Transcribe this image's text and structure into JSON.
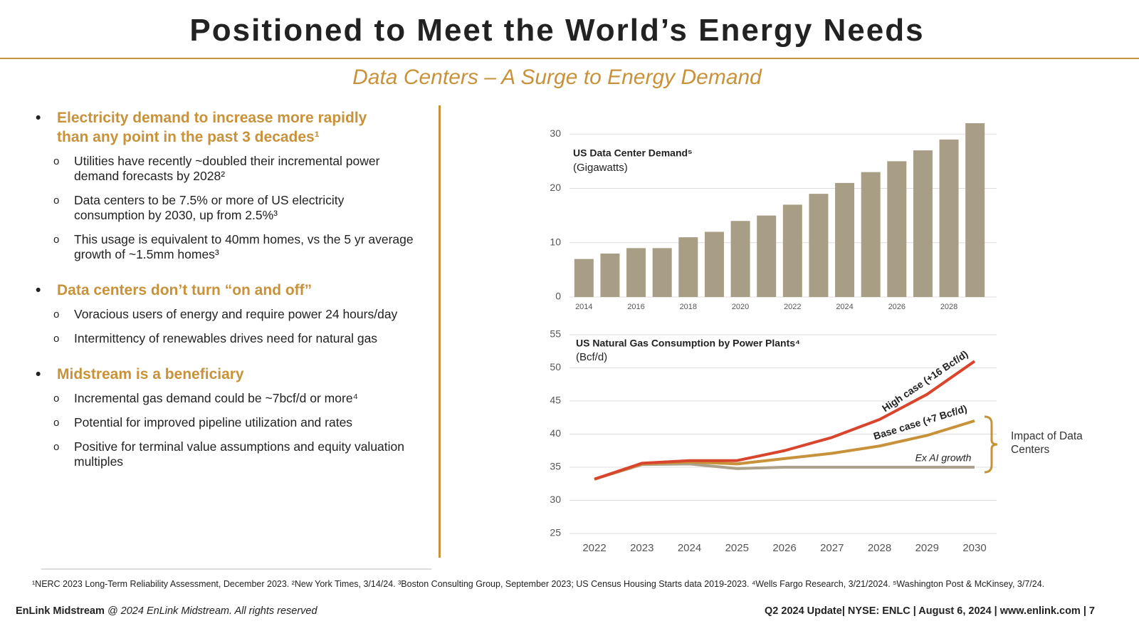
{
  "header": {
    "title": "Positioned to Meet the World’s Energy Needs",
    "subtitle": "Data Centers – A Surge to Energy Demand"
  },
  "bullets": [
    {
      "heading": "Electricity demand to increase more rapidly than any point in the past 3 decades¹",
      "items": [
        "Utilities have recently ~doubled their incremental power demand forecasts by 2028²",
        "Data centers to be 7.5% or more of US electricity consumption by 2030, up from 2.5%³",
        "This usage is equivalent to 40mm homes, vs the 5 yr average growth of ~1.5mm homes³"
      ]
    },
    {
      "heading": "Data centers don’t turn “on and off”",
      "items": [
        "Voracious users of energy and require power 24 hours/day",
        "Intermittency of renewables drives need for natural gas"
      ]
    },
    {
      "heading": "Midstream is a beneficiary",
      "items": [
        "Incremental gas demand could be ~7bcf/d or more⁴",
        "Potential for improved pipeline utilization and rates",
        "Positive for terminal value assumptions and equity valuation multiples"
      ]
    }
  ],
  "chart_data": [
    {
      "type": "bar",
      "title": "US Data Center Demand⁵",
      "subtitle": "(Gigawatts)",
      "categories": [
        "2014",
        null,
        "2016",
        null,
        "2018",
        null,
        "2020",
        null,
        "2022",
        null,
        "2024",
        null,
        "2026",
        null,
        "2028",
        null
      ],
      "values": [
        7,
        8,
        9,
        9,
        11,
        12,
        14,
        15,
        17,
        19,
        21,
        23,
        25,
        27,
        29,
        32
      ],
      "color": "#a89d85",
      "ylim": [
        0,
        32
      ],
      "yticks": [
        0,
        10,
        20,
        30
      ],
      "grid": true
    },
    {
      "type": "line",
      "title": "US Natural Gas Consumption by Power Plants⁴",
      "subtitle": "(Bcf/d)",
      "x": [
        2022,
        2023,
        2024,
        2025,
        2026,
        2027,
        2028,
        2029,
        2030
      ],
      "series": [
        {
          "name": "Ex AI growth",
          "color": "#aca18a",
          "values": [
            33.2,
            35.4,
            35.5,
            34.8,
            35,
            35,
            35,
            35,
            35
          ]
        },
        {
          "name": "Base case (+7 Bcf/d)",
          "color": "#c8923a",
          "values": [
            33.2,
            35.5,
            35.8,
            35.5,
            36.3,
            37.1,
            38.2,
            39.8,
            42
          ]
        },
        {
          "name": "High case (+16 Bcf/d)",
          "color": "#d9452c",
          "values": [
            33.2,
            35.6,
            36,
            36,
            37.5,
            39.5,
            42.2,
            46,
            51
          ]
        }
      ],
      "annotation": "Impact of Data Centers",
      "ylim": [
        25,
        55
      ],
      "yticks": [
        25,
        30,
        35,
        40,
        45,
        50,
        55
      ],
      "grid": true
    }
  ],
  "footnotes": "¹NERC 2023 Long-Term Reliability Assessment, December 2023. ²New York Times, 3/14/24. ³Boston Consulting Group, September 2023; US Census Housing Starts data 2019-2023. ⁴Wells Fargo Research, 3/21/2024. ⁵Washington Post & McKinsey, 3/7/24.",
  "footer": {
    "left_bold": "EnLink Midstream",
    "left_rest": " @ 2024 EnLink Midstream. All rights reserved",
    "right": "Q2 2024 Update| NYSE: ENLC | August 6, 2024 | www.enlink.com | 7"
  }
}
